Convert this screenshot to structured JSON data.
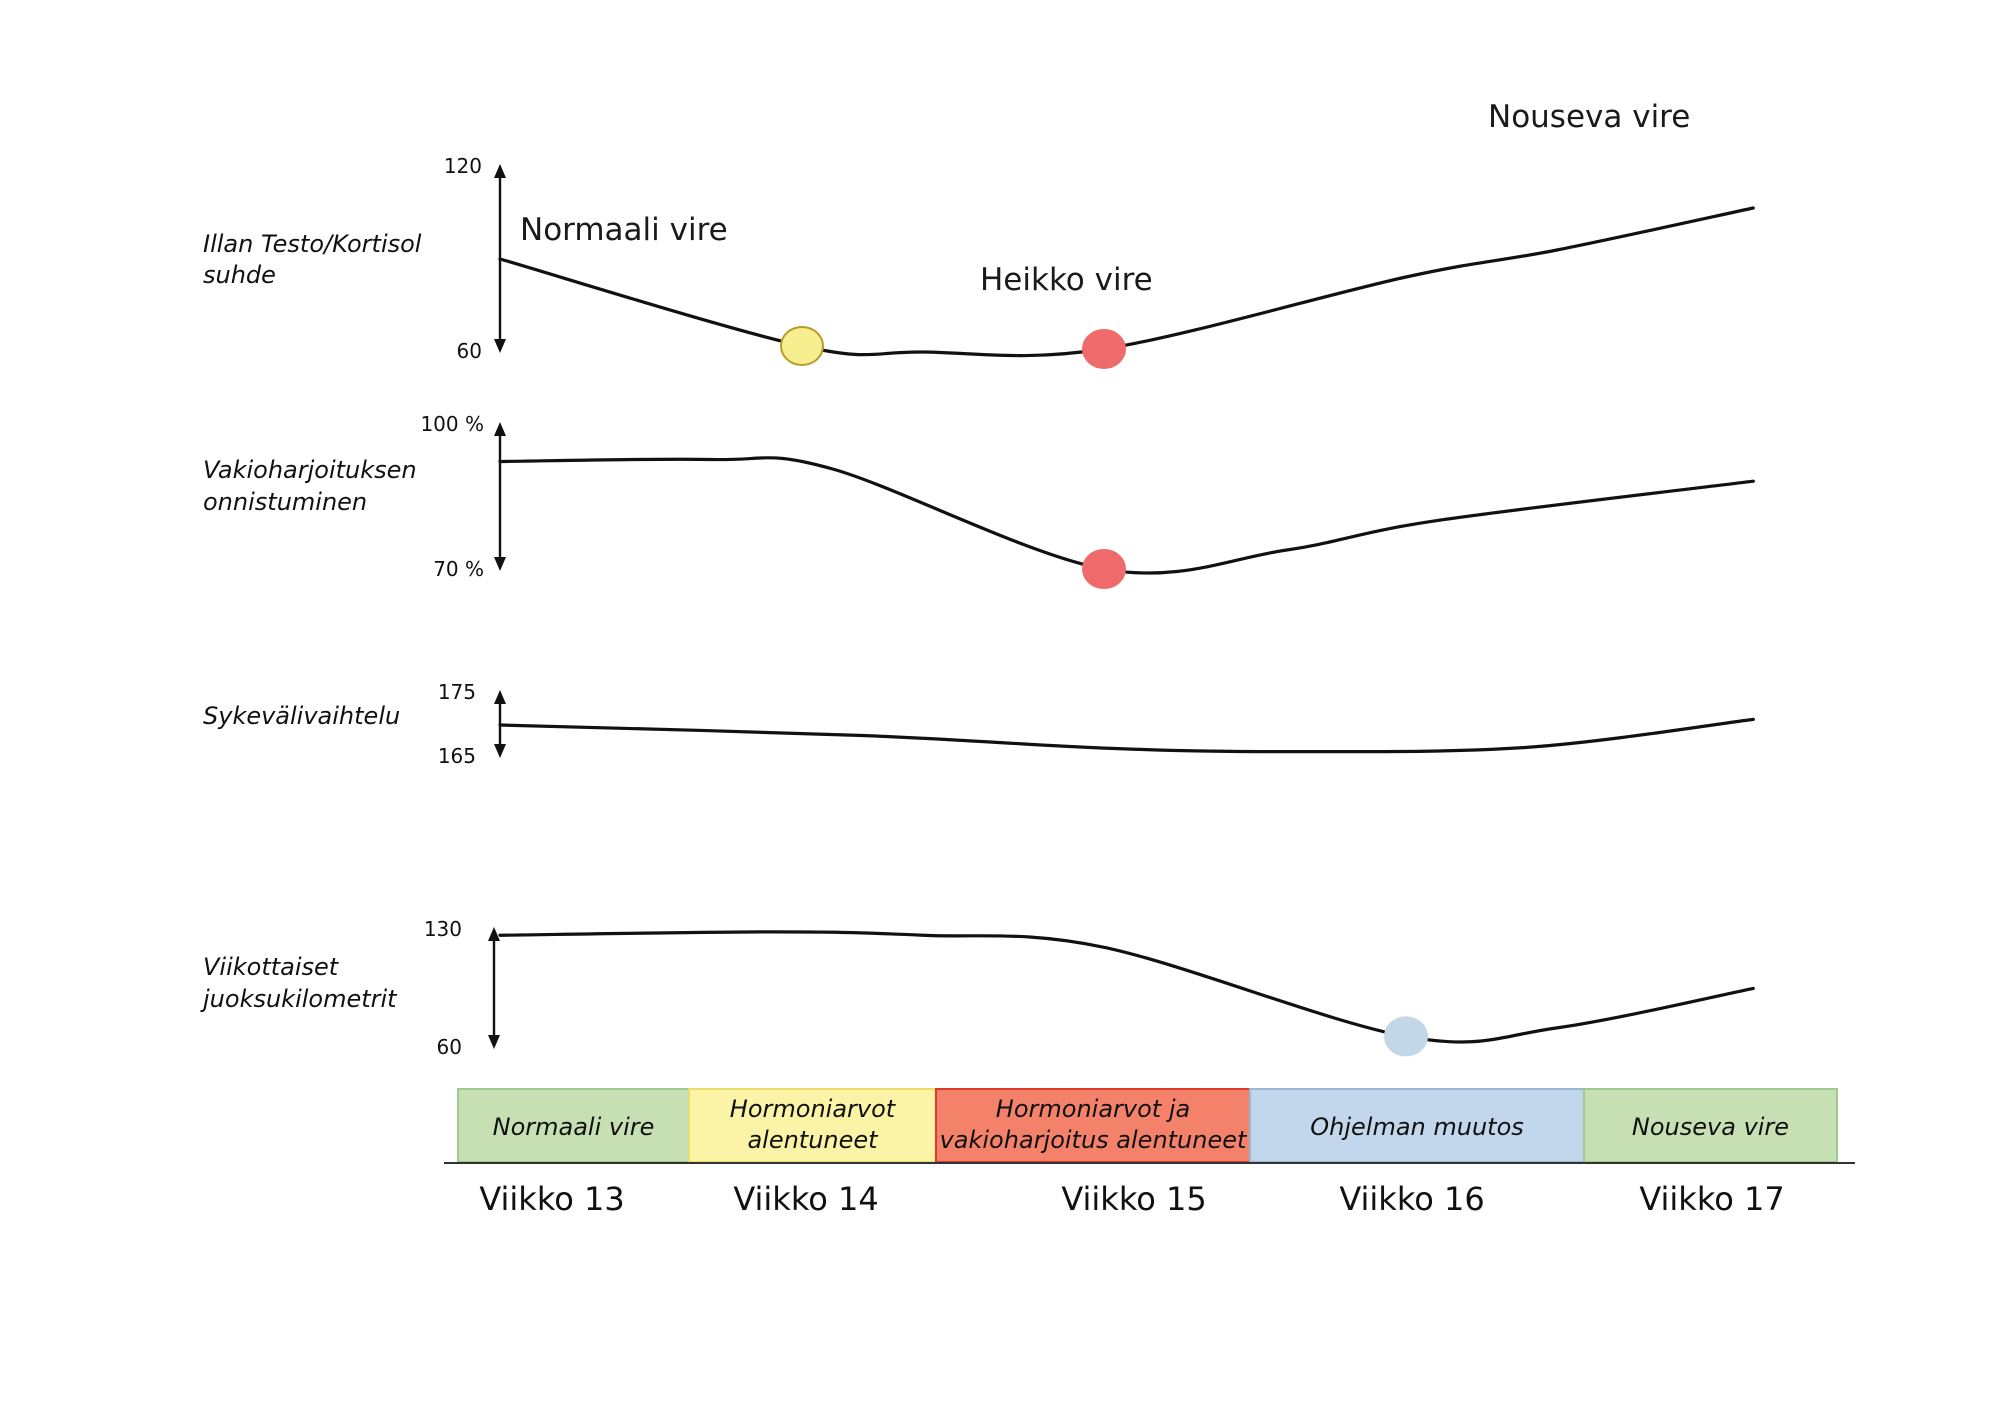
{
  "chart_data": {
    "type": "line",
    "weeks": [
      "Viikko 13",
      "Viikko 14",
      "Viikko 15",
      "Viikko 16",
      "Viikko 17"
    ],
    "panels": [
      {
        "id": "testo",
        "label_lines": [
          "Illan Testo/Kortisol",
          "suhde"
        ],
        "ymax_label": "120",
        "ymin_label": "60",
        "ylim": [
          60,
          120
        ],
        "points": [
          [
            13.0,
            91
          ],
          [
            14.0,
            62
          ],
          [
            14.4,
            60
          ],
          [
            15.0,
            61
          ],
          [
            16.0,
            85
          ],
          [
            16.5,
            94
          ],
          [
            17.15,
            108
          ]
        ],
        "markers": [
          {
            "x": 14.0,
            "y": 62,
            "color": "#f7ee8f",
            "stroke": "#b89a2b"
          },
          {
            "x": 15.0,
            "y": 61,
            "color": "#ef6a6a",
            "stroke": "#ef6a6a"
          }
        ]
      },
      {
        "id": "vakio",
        "label_lines": [
          "Vakioharjoituksen",
          "onnistuminen"
        ],
        "ymax_label": "100 %",
        "ymin_label": "70 %",
        "ylim": [
          70,
          100
        ],
        "points": [
          [
            13.0,
            92
          ],
          [
            13.7,
            92.4
          ],
          [
            14.1,
            90.5
          ],
          [
            15.0,
            70.2
          ],
          [
            15.6,
            74
          ],
          [
            16.1,
            80
          ],
          [
            17.15,
            88
          ]
        ],
        "markers": [
          {
            "x": 15.0,
            "y": 70.2,
            "color": "#ef6a6a",
            "stroke": "#ef6a6a"
          }
        ]
      },
      {
        "id": "syke",
        "label_lines": [
          "Sykevälivaihtelu"
        ],
        "ymax_label": "175",
        "ymin_label": "165",
        "ylim": [
          165,
          175
        ],
        "points": [
          [
            13.0,
            170
          ],
          [
            14.2,
            168.5
          ],
          [
            15.0,
            166.7
          ],
          [
            15.6,
            166.2
          ],
          [
            16.4,
            166.8
          ],
          [
            17.15,
            170.8
          ]
        ],
        "markers": []
      },
      {
        "id": "juoksu",
        "label_lines": [
          "Viikottaiset",
          "juoksukilometrit"
        ],
        "ymax_label": "130",
        "ymin_label": "60",
        "ylim": [
          60,
          130
        ],
        "points": [
          [
            13.0,
            124
          ],
          [
            13.9,
            126
          ],
          [
            14.4,
            124
          ],
          [
            15.0,
            117
          ],
          [
            16.0,
            65
          ],
          [
            16.5,
            70
          ],
          [
            17.15,
            93
          ]
        ],
        "markers": [
          {
            "x": 16.0,
            "y": 65,
            "color": "#c2d7e8",
            "stroke": "#c2d7e8"
          }
        ]
      }
    ],
    "annotations": [
      "Normaali vire",
      "Heikko vire",
      "Nouseva vire"
    ],
    "phases": [
      {
        "label_lines": [
          "Normaali vire"
        ],
        "color": "#c6e0b4",
        "border": "#9fc98d"
      },
      {
        "label_lines": [
          "Hormoniarvot",
          "alentuneet"
        ],
        "color": "#fbf3a6",
        "border": "#e8de6a"
      },
      {
        "label_lines": [
          "Hormoniarvot ja",
          "vakioharjoitus alentuneet"
        ],
        "color": "#f4826b",
        "border": "#d93a2a"
      },
      {
        "label_lines": [
          "Ohjelman muutos"
        ],
        "color": "#c2d7eb",
        "border": "#9ab8d6"
      },
      {
        "label_lines": [
          "Nouseva vire"
        ],
        "color": "#c6e0b4",
        "border": "#9fc98d"
      }
    ]
  }
}
